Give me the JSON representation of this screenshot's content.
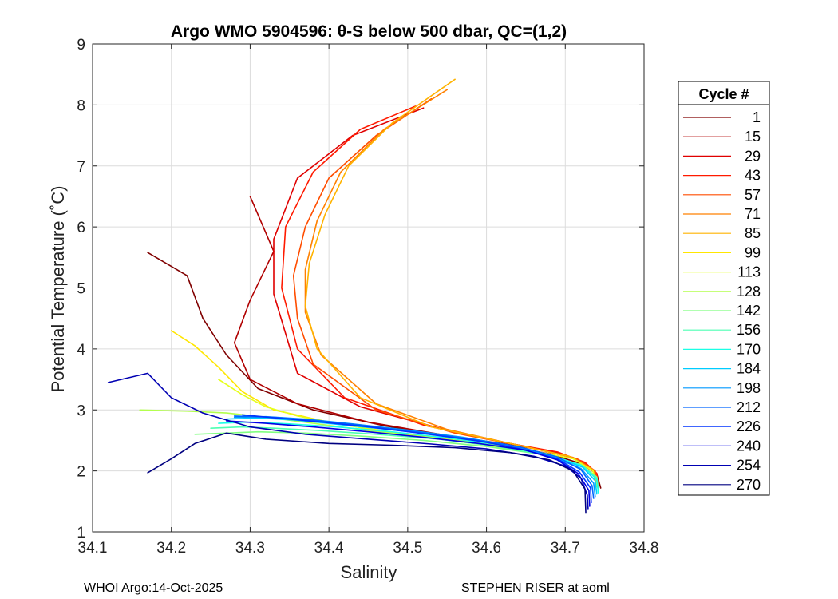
{
  "chart_data": {
    "type": "line",
    "title": "Argo WMO 5904596: θ-S below 500 dbar,  QC=(1,2)",
    "xlabel": "Salinity",
    "ylabel": "Potential Temperature (˚C)",
    "xlim": [
      34.1,
      34.8
    ],
    "ylim": [
      1,
      9
    ],
    "xticks": [
      "34.1",
      "34.2",
      "34.3",
      "34.4",
      "34.5",
      "34.6",
      "34.7",
      "34.8"
    ],
    "yticks": [
      "1",
      "2",
      "3",
      "4",
      "5",
      "6",
      "7",
      "8",
      "9"
    ],
    "grid": true,
    "legend": {
      "title": "Cycle #",
      "position": "right",
      "entries": [
        {
          "label": "1",
          "color": "#800000"
        },
        {
          "label": "15",
          "color": "#b00000"
        },
        {
          "label": "29",
          "color": "#e00000"
        },
        {
          "label": "43",
          "color": "#ff1a00"
        },
        {
          "label": "57",
          "color": "#ff4d00"
        },
        {
          "label": "71",
          "color": "#ff8000"
        },
        {
          "label": "85",
          "color": "#ffb300"
        },
        {
          "label": "99",
          "color": "#ffe600"
        },
        {
          "label": "113",
          "color": "#e6ff1a"
        },
        {
          "label": "128",
          "color": "#b3ff4d"
        },
        {
          "label": "142",
          "color": "#80ff80"
        },
        {
          "label": "156",
          "color": "#4dffb3"
        },
        {
          "label": "170",
          "color": "#1affe6"
        },
        {
          "label": "184",
          "color": "#00ccff"
        },
        {
          "label": "198",
          "color": "#0099ff"
        },
        {
          "label": "212",
          "color": "#0066ff"
        },
        {
          "label": "226",
          "color": "#0033ff"
        },
        {
          "label": "240",
          "color": "#0000e6"
        },
        {
          "label": "254",
          "color": "#0000b3"
        },
        {
          "label": "270",
          "color": "#000080"
        }
      ]
    },
    "series": [
      {
        "name": "1",
        "color": "#800000",
        "x": [
          34.17,
          34.22,
          34.24,
          34.27,
          34.31,
          34.38,
          34.47,
          34.55,
          34.62,
          34.68,
          34.72,
          34.74,
          34.745
        ],
        "y": [
          5.58,
          5.2,
          4.5,
          3.9,
          3.35,
          3.0,
          2.74,
          2.57,
          2.42,
          2.28,
          2.12,
          1.95,
          1.72
        ]
      },
      {
        "name": "15",
        "color": "#b00000",
        "x": [
          34.3,
          34.33,
          34.3,
          34.28,
          34.3,
          34.36,
          34.45,
          34.55,
          34.63,
          34.69,
          34.725,
          34.74,
          34.742
        ],
        "y": [
          6.5,
          5.6,
          4.8,
          4.1,
          3.5,
          3.1,
          2.8,
          2.58,
          2.43,
          2.3,
          2.13,
          1.95,
          1.74
        ]
      },
      {
        "name": "29",
        "color": "#e00000",
        "x": [
          34.52,
          34.43,
          34.36,
          34.33,
          34.33,
          34.36,
          34.44,
          34.54,
          34.63,
          34.69,
          34.725,
          34.74,
          34.742
        ],
        "y": [
          7.95,
          7.5,
          6.8,
          5.8,
          4.9,
          3.6,
          3.05,
          2.7,
          2.45,
          2.3,
          2.13,
          1.96,
          1.73
        ]
      },
      {
        "name": "43",
        "color": "#ff1a00",
        "x": [
          34.51,
          34.44,
          34.38,
          34.345,
          34.34,
          34.36,
          34.42,
          34.52,
          34.62,
          34.69,
          34.725,
          34.74,
          34.742
        ],
        "y": [
          7.98,
          7.6,
          6.9,
          6.0,
          5.0,
          4.0,
          3.2,
          2.75,
          2.47,
          2.31,
          2.14,
          1.96,
          1.73
        ]
      },
      {
        "name": "57",
        "color": "#ff4d00",
        "x": [
          34.53,
          34.46,
          34.4,
          34.37,
          34.355,
          34.36,
          34.38,
          34.46,
          34.56,
          34.65,
          34.715,
          34.738,
          34.742
        ],
        "y": [
          8.1,
          7.5,
          6.8,
          6.0,
          5.2,
          4.5,
          3.75,
          3.0,
          2.62,
          2.4,
          2.2,
          2.0,
          1.75
        ]
      },
      {
        "name": "71",
        "color": "#ff8000",
        "x": [
          34.55,
          34.47,
          34.415,
          34.385,
          34.37,
          34.37,
          34.39,
          34.46,
          34.55,
          34.64,
          34.71,
          34.736,
          34.742
        ],
        "y": [
          8.25,
          7.6,
          6.9,
          6.1,
          5.3,
          4.6,
          3.9,
          3.1,
          2.68,
          2.42,
          2.22,
          2.0,
          1.74
        ]
      },
      {
        "name": "85",
        "color": "#ffb300",
        "x": [
          34.56,
          34.48,
          34.425,
          34.395,
          34.375,
          34.37,
          34.385,
          34.44,
          34.53,
          34.63,
          34.705,
          34.735,
          34.741
        ],
        "y": [
          8.42,
          7.7,
          7.0,
          6.2,
          5.4,
          4.7,
          4.0,
          3.2,
          2.72,
          2.45,
          2.24,
          2.02,
          1.74
        ]
      },
      {
        "name": "99",
        "color": "#ffe600",
        "x": [
          34.2,
          34.23,
          34.26,
          34.29,
          34.33,
          34.4,
          34.48,
          34.57,
          34.65,
          34.71,
          34.735,
          34.74
        ],
        "y": [
          4.3,
          4.05,
          3.7,
          3.3,
          3.0,
          2.8,
          2.62,
          2.48,
          2.35,
          2.2,
          2.0,
          1.75
        ]
      },
      {
        "name": "113",
        "color": "#e6ff1a",
        "x": [
          34.26,
          34.29,
          34.32,
          34.36,
          34.42,
          34.5,
          34.58,
          34.65,
          34.71,
          34.735,
          34.74
        ],
        "y": [
          3.5,
          3.25,
          3.05,
          2.9,
          2.75,
          2.6,
          2.47,
          2.35,
          2.2,
          2.0,
          1.74
        ]
      },
      {
        "name": "128",
        "color": "#b3ff4d",
        "x": [
          34.16,
          34.22,
          34.27,
          34.32,
          34.38,
          34.45,
          34.53,
          34.6,
          34.67,
          34.72,
          34.74,
          34.742
        ],
        "y": [
          3.0,
          2.98,
          2.95,
          2.88,
          2.78,
          2.66,
          2.54,
          2.42,
          2.28,
          2.1,
          1.9,
          1.7
        ]
      },
      {
        "name": "142",
        "color": "#80ff80",
        "x": [
          34.23,
          34.27,
          34.31,
          34.37,
          34.44,
          34.52,
          34.6,
          34.67,
          34.72,
          34.74,
          34.742
        ],
        "y": [
          2.6,
          2.62,
          2.64,
          2.62,
          2.57,
          2.5,
          2.4,
          2.27,
          2.1,
          1.9,
          1.68
        ]
      },
      {
        "name": "156",
        "color": "#4dffb3",
        "x": [
          34.25,
          34.29,
          34.33,
          34.39,
          34.46,
          34.54,
          34.61,
          34.67,
          34.72,
          34.74,
          34.742
        ],
        "y": [
          2.7,
          2.72,
          2.7,
          2.66,
          2.6,
          2.52,
          2.41,
          2.27,
          2.1,
          1.88,
          1.66
        ]
      },
      {
        "name": "170",
        "color": "#1affe6",
        "x": [
          34.26,
          34.3,
          34.35,
          34.41,
          34.48,
          34.55,
          34.62,
          34.68,
          34.722,
          34.74,
          34.742
        ],
        "y": [
          2.78,
          2.8,
          2.77,
          2.72,
          2.64,
          2.54,
          2.42,
          2.27,
          2.08,
          1.86,
          1.64
        ]
      },
      {
        "name": "184",
        "color": "#00ccff",
        "x": [
          34.27,
          34.31,
          34.36,
          34.42,
          34.49,
          34.56,
          34.63,
          34.68,
          34.722,
          34.738,
          34.74
        ],
        "y": [
          2.85,
          2.87,
          2.83,
          2.75,
          2.66,
          2.55,
          2.42,
          2.26,
          2.06,
          1.84,
          1.62
        ]
      },
      {
        "name": "198",
        "color": "#0099ff",
        "x": [
          34.28,
          34.32,
          34.37,
          34.43,
          34.5,
          34.57,
          34.63,
          34.68,
          34.72,
          34.736,
          34.738
        ],
        "y": [
          2.88,
          2.89,
          2.85,
          2.77,
          2.67,
          2.55,
          2.42,
          2.25,
          2.04,
          1.8,
          1.58
        ]
      },
      {
        "name": "212",
        "color": "#0066ff",
        "x": [
          34.28,
          34.33,
          34.38,
          34.44,
          34.51,
          34.58,
          34.64,
          34.69,
          34.72,
          34.734,
          34.736
        ],
        "y": [
          2.9,
          2.88,
          2.83,
          2.75,
          2.64,
          2.52,
          2.4,
          2.23,
          2.02,
          1.76,
          1.55
        ]
      },
      {
        "name": "226",
        "color": "#0033ff",
        "x": [
          34.29,
          34.34,
          34.39,
          34.45,
          34.52,
          34.59,
          34.64,
          34.69,
          34.718,
          34.732,
          34.733
        ],
        "y": [
          2.92,
          2.86,
          2.8,
          2.72,
          2.61,
          2.49,
          2.37,
          2.2,
          1.98,
          1.72,
          1.48
        ]
      },
      {
        "name": "240",
        "color": "#0000e6",
        "x": [
          34.27,
          34.32,
          34.38,
          34.45,
          34.52,
          34.59,
          34.65,
          34.69,
          34.716,
          34.73,
          34.731
        ],
        "y": [
          2.82,
          2.78,
          2.72,
          2.64,
          2.55,
          2.45,
          2.34,
          2.18,
          1.96,
          1.68,
          1.42
        ]
      },
      {
        "name": "254",
        "color": "#0000b3",
        "x": [
          34.12,
          34.17,
          34.2,
          34.24,
          34.3,
          34.37,
          34.45,
          34.53,
          34.6,
          34.66,
          34.7,
          34.72,
          34.728,
          34.729
        ],
        "y": [
          3.45,
          3.6,
          3.2,
          2.95,
          2.72,
          2.6,
          2.52,
          2.44,
          2.36,
          2.24,
          2.08,
          1.88,
          1.6,
          1.38
        ]
      },
      {
        "name": "270",
        "color": "#000080",
        "x": [
          34.17,
          34.2,
          34.23,
          34.27,
          34.32,
          34.4,
          34.48,
          34.56,
          34.63,
          34.68,
          34.71,
          34.725,
          34.726
        ],
        "y": [
          1.97,
          2.2,
          2.45,
          2.62,
          2.52,
          2.45,
          2.42,
          2.38,
          2.3,
          2.18,
          2.0,
          1.7,
          1.32
        ]
      }
    ]
  },
  "footer": {
    "left": "WHOI Argo:14-Oct-2025",
    "right": "STEPHEN RISER at aoml"
  }
}
